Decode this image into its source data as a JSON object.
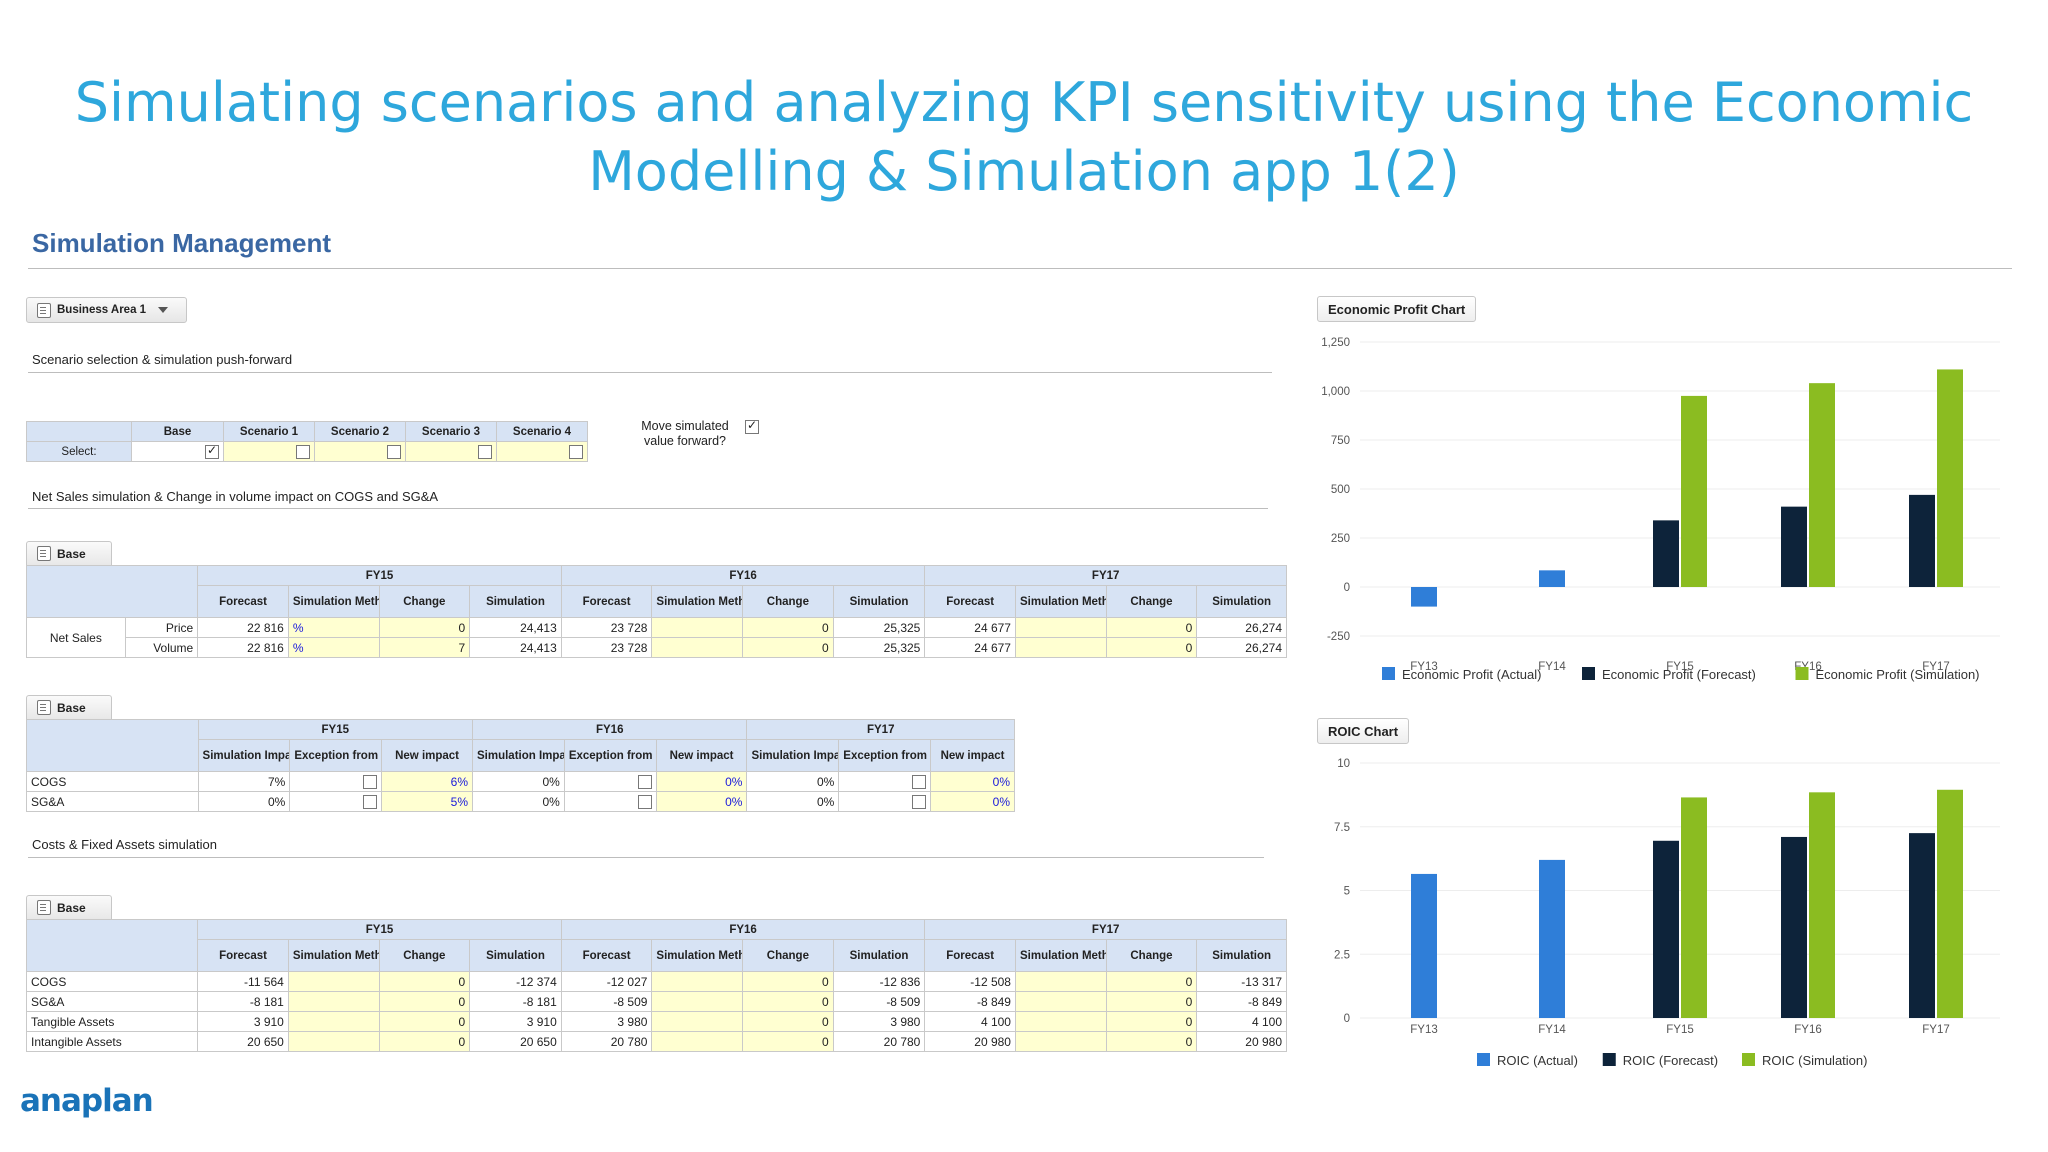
{
  "slide_title": {
    "line1": "Simulating scenarios and analyzing KPI sensitivity using the Economic",
    "line2": "Modelling & Simulation app 1(2)"
  },
  "page_title": "Simulation Management",
  "business_area": "Business Area 1",
  "scenario_section": {
    "label": "Scenario selection & simulation push-forward",
    "headers": [
      "Base",
      "Scenario 1",
      "Scenario 2",
      "Scenario 3",
      "Scenario 4"
    ],
    "row_label": "Select:",
    "selected": [
      true,
      false,
      false,
      false,
      false
    ],
    "move_forward_label": "Move simulated value forward?",
    "move_forward_checked": true
  },
  "net_sales_section": {
    "label": "Net Sales simulation & Change in volume impact on COGS and SG&A",
    "tab": "Base",
    "years": [
      "FY15",
      "FY16",
      "FY17"
    ],
    "col_headers": [
      "Forecast",
      "Simulation Method",
      "Change",
      "Simulation"
    ],
    "group_label": "Net Sales",
    "rows": [
      {
        "label": "Price",
        "cells": [
          [
            "22 816",
            "%",
            "0",
            "24,413"
          ],
          [
            "23 728",
            "",
            "0",
            "25,325"
          ],
          [
            "24 677",
            "",
            "0",
            "26,274"
          ]
        ]
      },
      {
        "label": "Volume",
        "cells": [
          [
            "22 816",
            "%",
            "7",
            "24,413"
          ],
          [
            "23 728",
            "",
            "0",
            "25,325"
          ],
          [
            "24 677",
            "",
            "0",
            "26,274"
          ]
        ]
      }
    ]
  },
  "impact_section": {
    "tab": "Base",
    "years": [
      "FY15",
      "FY16",
      "FY17"
    ],
    "col_headers": [
      "Simulation Impact",
      "Exception from rule?",
      "New impact"
    ],
    "rows": [
      {
        "label": "COGS",
        "cells": [
          [
            "7%",
            false,
            "6%"
          ],
          [
            "0%",
            false,
            "0%"
          ],
          [
            "0%",
            false,
            "0%"
          ]
        ]
      },
      {
        "label": "SG&A",
        "cells": [
          [
            "0%",
            false,
            "5%"
          ],
          [
            "0%",
            false,
            "0%"
          ],
          [
            "0%",
            false,
            "0%"
          ]
        ]
      }
    ]
  },
  "costs_section": {
    "label": "Costs & Fixed Assets simulation",
    "tab": "Base",
    "years": [
      "FY15",
      "FY16",
      "FY17"
    ],
    "col_headers": [
      "Forecast",
      "Simulation Method",
      "Change",
      "Simulation"
    ],
    "rows": [
      {
        "label": "COGS",
        "cells": [
          [
            "-11 564",
            "",
            "0",
            "-12 374"
          ],
          [
            "-12 027",
            "",
            "0",
            "-12 836"
          ],
          [
            "-12 508",
            "",
            "0",
            "-13 317"
          ]
        ]
      },
      {
        "label": "SG&A",
        "cells": [
          [
            "-8 181",
            "",
            "0",
            "-8 181"
          ],
          [
            "-8 509",
            "",
            "0",
            "-8 509"
          ],
          [
            "-8 849",
            "",
            "0",
            "-8 849"
          ]
        ]
      },
      {
        "label": "Tangible Assets",
        "cells": [
          [
            "3 910",
            "",
            "0",
            "3 910"
          ],
          [
            "3 980",
            "",
            "0",
            "3 980"
          ],
          [
            "4 100",
            "",
            "0",
            "4 100"
          ]
        ]
      },
      {
        "label": "Intangible Assets",
        "cells": [
          [
            "20 650",
            "",
            "0",
            "20 650"
          ],
          [
            "20 780",
            "",
            "0",
            "20 780"
          ],
          [
            "20 980",
            "",
            "0",
            "20 980"
          ]
        ]
      }
    ]
  },
  "colors": {
    "actual": "#2f7ed8",
    "forecast": "#0d233a",
    "simulation": "#8bbc21",
    "title": "#2ea7dc",
    "header": "#d7e3f4",
    "input": "#ffffd1"
  },
  "logo_text": "anaplan",
  "chart_data": [
    {
      "type": "bar",
      "title": "Economic Profit Chart",
      "categories": [
        "FY13",
        "FY14",
        "FY15",
        "FY16",
        "FY17"
      ],
      "yticks": [
        "1,250",
        "1,000",
        "750",
        "500",
        "250",
        "0",
        "-250"
      ],
      "ylim": [
        -250,
        1250
      ],
      "series": [
        {
          "name": "Economic Profit (Actual)",
          "values": [
            -100,
            85,
            null,
            null,
            null
          ]
        },
        {
          "name": "Economic Profit (Forecast)",
          "values": [
            null,
            null,
            340,
            410,
            470
          ]
        },
        {
          "name": "Economic Profit (Simulation)",
          "values": [
            null,
            null,
            975,
            1040,
            1110
          ]
        }
      ],
      "legend": "bottom"
    },
    {
      "type": "bar",
      "title": "ROIC Chart",
      "categories": [
        "FY13",
        "FY14",
        "FY15",
        "FY16",
        "FY17"
      ],
      "yticks": [
        "10",
        "7.5",
        "5",
        "2.5",
        "0"
      ],
      "ylim": [
        0,
        10
      ],
      "series": [
        {
          "name": "ROIC (Actual)",
          "values": [
            5.65,
            6.2,
            null,
            null,
            null
          ]
        },
        {
          "name": "ROIC (Forecast)",
          "values": [
            null,
            null,
            6.95,
            7.1,
            7.25
          ]
        },
        {
          "name": "ROIC (Simulation)",
          "values": [
            null,
            null,
            8.65,
            8.85,
            8.95
          ]
        }
      ],
      "legend": "bottom"
    }
  ]
}
